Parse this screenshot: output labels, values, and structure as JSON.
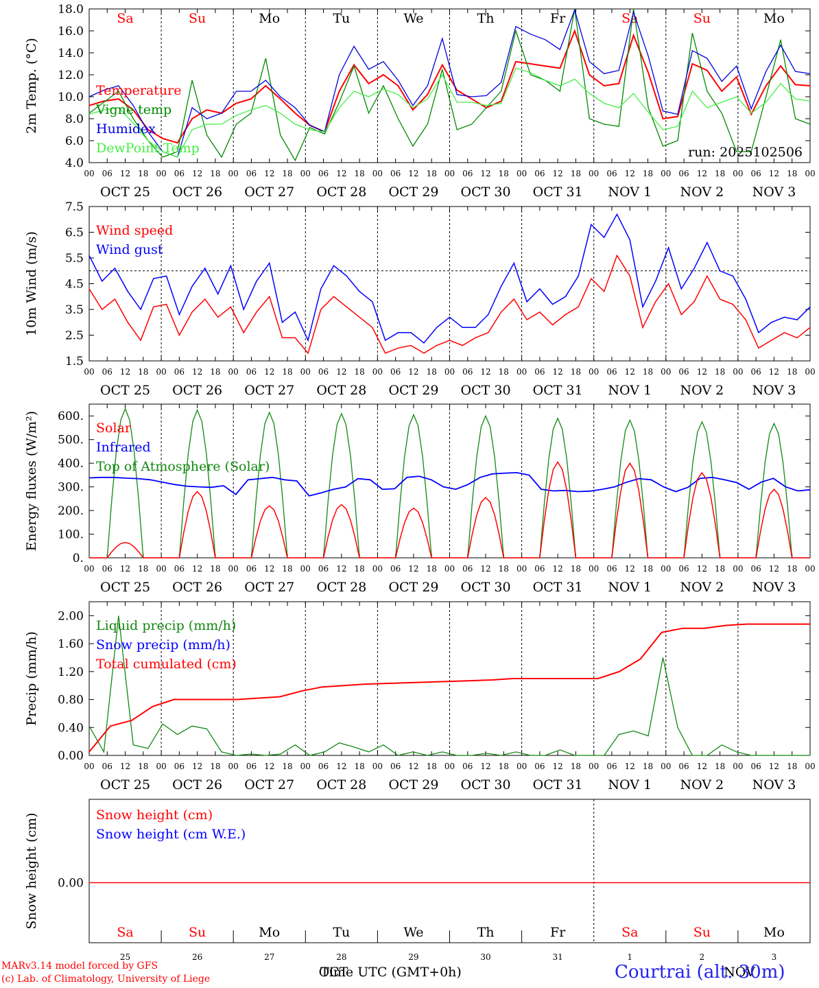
{
  "chart_data": [
    {
      "type": "line",
      "ylabel": "2m Temp. (°C)",
      "ylim": [
        4,
        18
      ],
      "yticks": [
        "4.0",
        "6.0",
        "8.0",
        "10.0",
        "12.0",
        "14.0",
        "16.0",
        "18.0"
      ],
      "days": [
        {
          "abbr": "Sa",
          "color": "#ff0000"
        },
        {
          "abbr": "Su",
          "color": "#ff0000"
        },
        {
          "abbr": "Mo",
          "color": "#000000"
        },
        {
          "abbr": "Tu",
          "color": "#000000"
        },
        {
          "abbr": "We",
          "color": "#000000"
        },
        {
          "abbr": "Th",
          "color": "#000000"
        },
        {
          "abbr": "Fr",
          "color": "#000000"
        },
        {
          "abbr": "Sa",
          "color": "#ff0000"
        },
        {
          "abbr": "Su",
          "color": "#ff0000"
        },
        {
          "abbr": "Mo",
          "color": "#000000"
        }
      ],
      "annotation": "run: 2025102506",
      "series": [
        {
          "name": "Temperature",
          "color": "#ff0000",
          "values": [
            9.2,
            9.6,
            9.8,
            8.8,
            7.0,
            6.2,
            5.8,
            8.0,
            8.8,
            8.5,
            9.4,
            9.8,
            11.0,
            9.8,
            8.5,
            7.4,
            6.8,
            10.5,
            12.9,
            11.2,
            12.0,
            11.0,
            8.8,
            10.2,
            12.9,
            10.6,
            9.8,
            9.0,
            9.6,
            13.2,
            13.0,
            12.8,
            12.6,
            16.0,
            12.0,
            11.0,
            11.2,
            15.6,
            12.2,
            8.0,
            8.2,
            13.0,
            12.4,
            10.5,
            11.8,
            8.4,
            11.0,
            12.8,
            11.1,
            11.0
          ]
        },
        {
          "name": "Vigne temp",
          "color": "#008800",
          "values": [
            8.5,
            9.5,
            10.5,
            8.0,
            6.0,
            4.5,
            5.0,
            11.5,
            6.5,
            4.5,
            7.5,
            8.5,
            13.5,
            6.5,
            4.2,
            7.2,
            6.6,
            9.5,
            12.8,
            8.5,
            11.0,
            8.0,
            5.5,
            7.5,
            12.5,
            7.0,
            7.5,
            9.0,
            10.5,
            16.0,
            12.0,
            11.5,
            10.5,
            18.0,
            8.0,
            7.5,
            7.3,
            18.0,
            9.0,
            5.5,
            6.0,
            15.8,
            10.5,
            8.5,
            5.0,
            5.0,
            10.0,
            15.2,
            8.0,
            7.5
          ]
        },
        {
          "name": "Humidex",
          "color": "#0000dd",
          "values": [
            10.0,
            10.6,
            11.0,
            9.2,
            6.8,
            5.0,
            4.5,
            9.0,
            8.0,
            8.5,
            10.5,
            10.5,
            11.5,
            10.0,
            9.0,
            7.4,
            6.8,
            12.0,
            14.6,
            12.5,
            13.2,
            11.5,
            9.2,
            11.0,
            15.3,
            10.2,
            10.0,
            10.1,
            11.3,
            16.4,
            15.7,
            15.2,
            14.3,
            17.9,
            13.2,
            12.1,
            12.4,
            17.7,
            13.7,
            8.7,
            8.4,
            14.2,
            13.5,
            11.4,
            12.8,
            8.9,
            12.3,
            14.7,
            12.3,
            12.1
          ]
        },
        {
          "name": "DewPoint Temp",
          "color": "#44ee44",
          "values": [
            8.4,
            8.8,
            9.0,
            7.6,
            6.0,
            5.0,
            4.5,
            7.0,
            7.5,
            7.5,
            8.3,
            8.8,
            9.2,
            8.5,
            7.5,
            7.0,
            6.8,
            9.0,
            10.5,
            10.0,
            10.7,
            10.2,
            9.0,
            9.8,
            12.0,
            9.5,
            9.5,
            9.2,
            9.4,
            12.6,
            12.2,
            11.5,
            11.0,
            11.6,
            10.3,
            9.4,
            9.0,
            10.3,
            8.6,
            7.0,
            7.3,
            10.5,
            9.0,
            9.5,
            10.0,
            8.5,
            9.5,
            11.2,
            9.8,
            9.6
          ]
        }
      ]
    },
    {
      "type": "line",
      "ylabel": "10m Wind (m/s)",
      "ylim": [
        1.5,
        7.5
      ],
      "yticks": [
        "1.5",
        "2.5",
        "3.5",
        "4.5",
        "5.5",
        "6.5",
        "7.5"
      ],
      "reference_line": 5.0,
      "series": [
        {
          "name": "Wind speed",
          "color": "#ff0000",
          "values": [
            4.3,
            3.5,
            3.9,
            3.0,
            2.3,
            3.6,
            3.7,
            2.5,
            3.4,
            3.9,
            3.2,
            3.6,
            2.6,
            3.4,
            4.0,
            2.4,
            2.4,
            1.8,
            3.5,
            4.0,
            3.6,
            3.2,
            2.8,
            1.8,
            2.0,
            2.1,
            1.8,
            2.1,
            2.3,
            2.1,
            2.4,
            2.6,
            3.4,
            3.9,
            3.1,
            3.4,
            2.9,
            3.3,
            3.6,
            4.7,
            4.2,
            5.6,
            4.8,
            2.8,
            3.8,
            4.5,
            3.3,
            3.8,
            4.8,
            3.9,
            3.7,
            3.1,
            2.0,
            2.3,
            2.6,
            2.4,
            2.8
          ]
        },
        {
          "name": "Wind gust",
          "color": "#0000ff",
          "values": [
            5.6,
            4.6,
            5.1,
            4.2,
            3.5,
            4.7,
            4.8,
            3.3,
            4.4,
            5.1,
            4.1,
            5.2,
            3.5,
            4.6,
            5.3,
            3.0,
            3.4,
            2.3,
            4.3,
            5.2,
            4.8,
            4.2,
            3.8,
            2.3,
            2.6,
            2.6,
            2.2,
            2.8,
            3.2,
            2.8,
            2.8,
            3.3,
            4.4,
            5.3,
            3.8,
            4.3,
            3.7,
            4.0,
            4.8,
            6.8,
            6.3,
            7.2,
            6.2,
            3.6,
            4.6,
            5.9,
            4.3,
            5.1,
            6.1,
            5.0,
            4.8,
            3.9,
            2.6,
            3.0,
            3.2,
            3.1,
            3.6
          ]
        }
      ]
    },
    {
      "type": "line",
      "ylabel": "Energy fluxes (W/m²)",
      "ylim": [
        0,
        650
      ],
      "yticks": [
        "0.",
        "100.",
        "200.",
        "300.",
        "400.",
        "500.",
        "600."
      ],
      "series": [
        {
          "name": "Solar",
          "color": "#ff0000",
          "peaks": [
            65,
            280,
            220,
            225,
            210,
            255,
            405,
            400,
            360,
            290
          ]
        },
        {
          "name": "Infrared",
          "color": "#0000ff",
          "values": [
            338,
            340,
            340,
            337,
            335,
            330,
            320,
            310,
            303,
            300,
            298,
            305,
            268,
            330,
            335,
            340,
            330,
            325,
            262,
            275,
            290,
            300,
            335,
            330,
            290,
            292,
            340,
            345,
            330,
            300,
            290,
            310,
            340,
            355,
            358,
            360,
            350,
            290,
            283,
            285,
            280,
            282,
            290,
            300,
            320,
            335,
            330,
            300,
            280,
            298,
            336,
            340,
            330,
            318,
            290,
            320,
            336,
            300,
            283,
            288
          ]
        },
        {
          "name": "Top of Atmosphere (Solar)",
          "color": "#118811",
          "peaks": [
            630,
            625,
            615,
            610,
            605,
            600,
            590,
            582,
            575,
            568
          ]
        }
      ]
    },
    {
      "type": "line",
      "ylabel": "Precip (mm/h)",
      "ylim": [
        0,
        2.2
      ],
      "yticks": [
        "0.00",
        "0.40",
        "0.80",
        "1.20",
        "1.60",
        "2.00"
      ],
      "series": [
        {
          "name": "Liquid precip (mm/h)",
          "color": "#118811",
          "values": [
            0.42,
            0.05,
            2.0,
            0.15,
            0.1,
            0.45,
            0.3,
            0.42,
            0.38,
            0.05,
            0.0,
            0.02,
            0.0,
            0.02,
            0.15,
            0.0,
            0.05,
            0.18,
            0.12,
            0.05,
            0.15,
            0.0,
            0.05,
            0.0,
            0.05,
            0.0,
            0.0,
            0.03,
            0.0,
            0.05,
            0.0,
            0.0,
            0.08,
            0.0,
            0.0,
            0.0,
            0.3,
            0.35,
            0.28,
            1.4,
            0.4,
            0.0,
            0.0,
            0.15,
            0.05,
            0.0,
            0.0,
            0.0,
            0.0,
            0.0
          ]
        },
        {
          "name": "Snow precip (mm/h)",
          "color": "#0000ff",
          "values": [
            0,
            0
          ]
        },
        {
          "name": "Total cumulated (cm)",
          "color": "#ff0000",
          "values": [
            0.05,
            0.42,
            0.5,
            0.7,
            0.8,
            0.8,
            0.8,
            0.8,
            0.82,
            0.84,
            0.92,
            0.98,
            1.0,
            1.02,
            1.03,
            1.04,
            1.05,
            1.06,
            1.07,
            1.08,
            1.1,
            1.1,
            1.1,
            1.1,
            1.1,
            1.2,
            1.38,
            1.76,
            1.82,
            1.82,
            1.86,
            1.88,
            1.88,
            1.88,
            1.88
          ]
        }
      ]
    },
    {
      "type": "line",
      "ylabel": "Snow height (cm)",
      "ytick": "0.00",
      "series": [
        {
          "name": "Snow height (cm)",
          "color": "#ff0000",
          "values": [
            0,
            0
          ]
        },
        {
          "name": "Snow height (cm W.E.)",
          "color": "#0000ff",
          "values": [
            0,
            0
          ]
        }
      ],
      "day_numbers": [
        "25",
        "26",
        "27",
        "28",
        "29",
        "30",
        "31",
        "1",
        "2",
        "3"
      ],
      "xlabel": "Time UTC (GMT+0h)",
      "month_labels": [
        "OCT",
        "NOV"
      ]
    }
  ],
  "x_axis": {
    "hour_ticks": [
      "00",
      "06",
      "12",
      "18"
    ],
    "end_tick": "00",
    "date_labels": [
      "OCT 25",
      "OCT 26",
      "OCT 27",
      "OCT 28",
      "OCT 29",
      "OCT 30",
      "OCT 31",
      "NOV  1",
      "NOV  2",
      "NOV  3"
    ]
  },
  "footer": {
    "model": "MARv3.14 model forced by GFS",
    "lab": "(c) Lab. of Climatology, University of Liege",
    "location": "Courtrai (alt. 30m)"
  }
}
